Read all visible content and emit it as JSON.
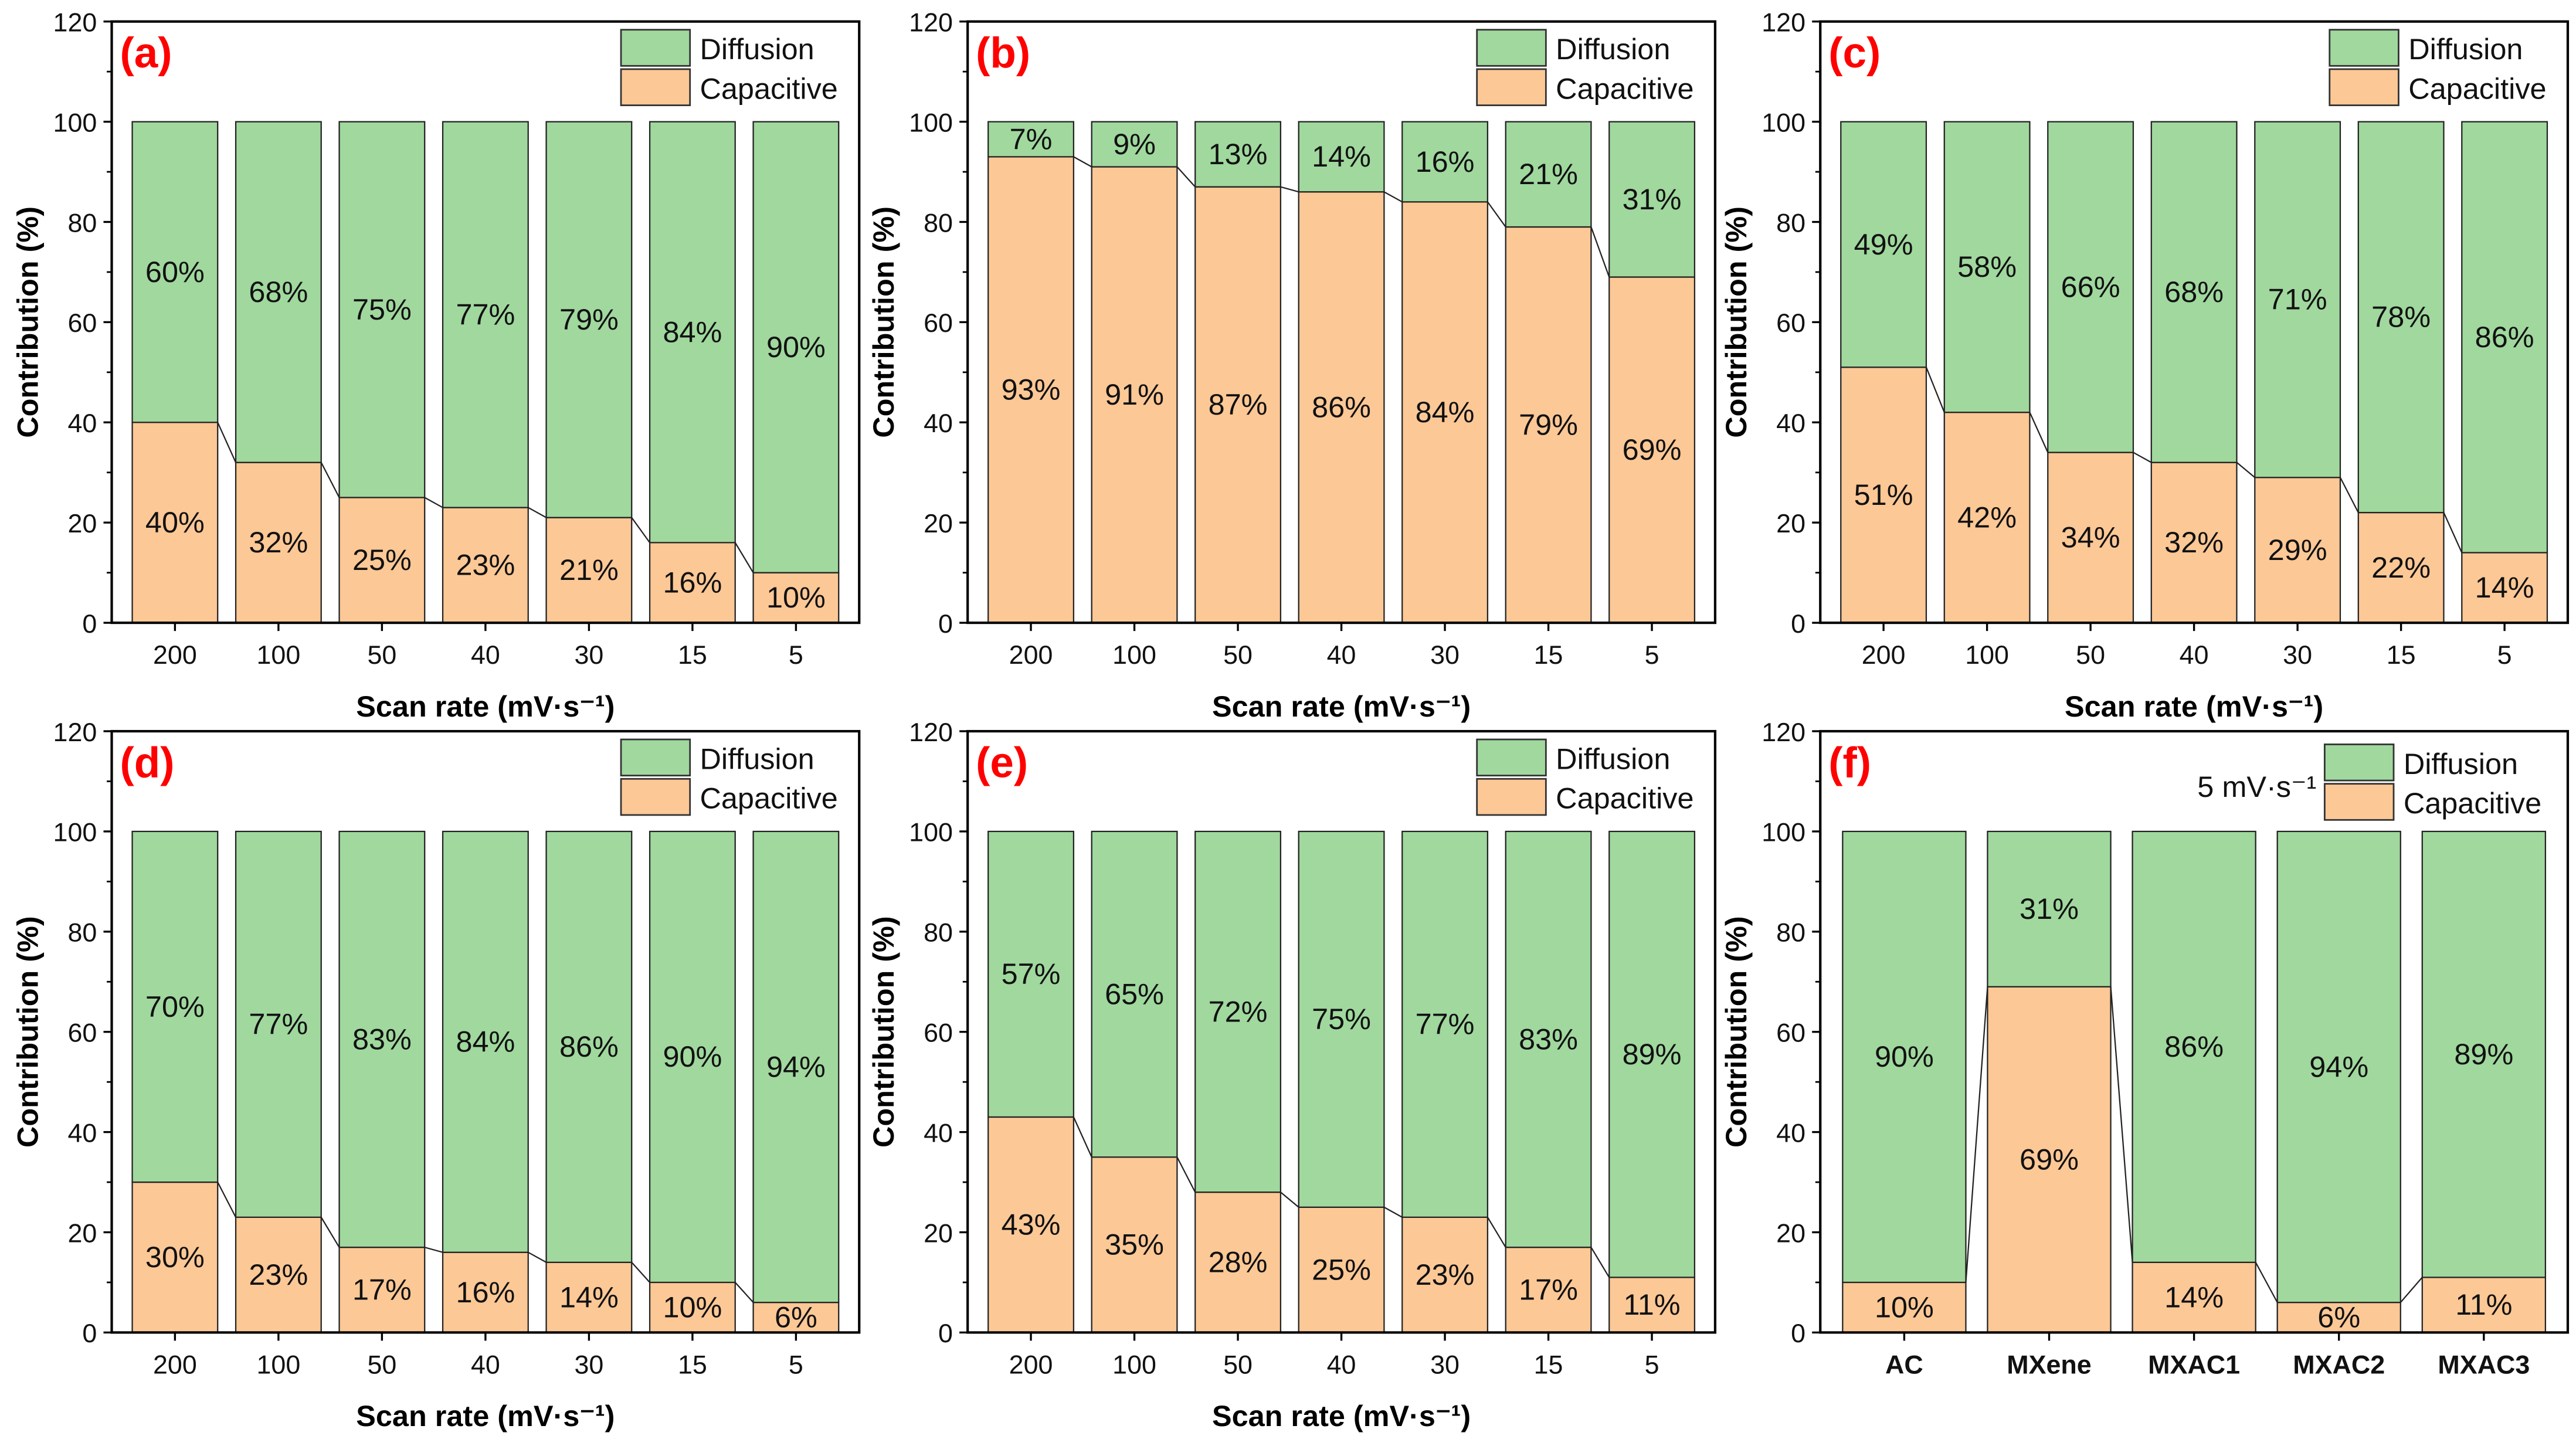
{
  "colors": {
    "diffusion": "#A0D89E",
    "capacitive": "#FCC896",
    "panel_label": "#FF0000"
  },
  "chart_data": [
    {
      "type": "bar",
      "stacked": true,
      "panel_label": "(a)",
      "xlabel": "Scan rate (mV·s⁻¹)",
      "ylabel": "Contribution (%)",
      "ylim": [
        0,
        120
      ],
      "yticks": [
        0,
        20,
        40,
        60,
        80,
        100,
        120
      ],
      "categories": [
        "200",
        "100",
        "50",
        "40",
        "30",
        "15",
        "5"
      ],
      "legend": [
        "Diffusion",
        "Capacitive"
      ],
      "legend_position": "top-right",
      "annotation": "",
      "series": [
        {
          "name": "Capacitive",
          "values": [
            40,
            32,
            25,
            23,
            21,
            16,
            10
          ]
        },
        {
          "name": "Diffusion",
          "values": [
            60,
            68,
            75,
            77,
            79,
            84,
            90
          ]
        }
      ]
    },
    {
      "type": "bar",
      "stacked": true,
      "panel_label": "(b)",
      "xlabel": "Scan rate (mV·s⁻¹)",
      "ylabel": "Contribution (%)",
      "ylim": [
        0,
        120
      ],
      "yticks": [
        0,
        20,
        40,
        60,
        80,
        100,
        120
      ],
      "categories": [
        "200",
        "100",
        "50",
        "40",
        "30",
        "15",
        "5"
      ],
      "legend": [
        "Diffusion",
        "Capacitive"
      ],
      "legend_position": "top-right",
      "annotation": "",
      "series": [
        {
          "name": "Capacitive",
          "values": [
            93,
            91,
            87,
            86,
            84,
            79,
            69
          ]
        },
        {
          "name": "Diffusion",
          "values": [
            7,
            9,
            13,
            14,
            16,
            21,
            31
          ]
        }
      ]
    },
    {
      "type": "bar",
      "stacked": true,
      "panel_label": "(c)",
      "xlabel": "Scan rate (mV·s⁻¹)",
      "ylabel": "Contribution (%)",
      "ylim": [
        0,
        120
      ],
      "yticks": [
        0,
        20,
        40,
        60,
        80,
        100,
        120
      ],
      "categories": [
        "200",
        "100",
        "50",
        "40",
        "30",
        "15",
        "5"
      ],
      "legend": [
        "Diffusion",
        "Capacitive"
      ],
      "legend_position": "top-right",
      "annotation": "",
      "series": [
        {
          "name": "Capacitive",
          "values": [
            51,
            42,
            34,
            32,
            29,
            22,
            14
          ]
        },
        {
          "name": "Diffusion",
          "values": [
            49,
            58,
            66,
            68,
            71,
            78,
            86
          ]
        }
      ]
    },
    {
      "type": "bar",
      "stacked": true,
      "panel_label": "(d)",
      "xlabel": "Scan rate (mV·s⁻¹)",
      "ylabel": "Contribution (%)",
      "ylim": [
        0,
        120
      ],
      "yticks": [
        0,
        20,
        40,
        60,
        80,
        100,
        120
      ],
      "categories": [
        "200",
        "100",
        "50",
        "40",
        "30",
        "15",
        "5"
      ],
      "legend": [
        "Diffusion",
        "Capacitive"
      ],
      "legend_position": "top-right",
      "annotation": "",
      "series": [
        {
          "name": "Capacitive",
          "values": [
            30,
            23,
            17,
            16,
            14,
            10,
            6
          ]
        },
        {
          "name": "Diffusion",
          "values": [
            70,
            77,
            83,
            84,
            86,
            90,
            94
          ]
        }
      ]
    },
    {
      "type": "bar",
      "stacked": true,
      "panel_label": "(e)",
      "xlabel": "Scan rate (mV·s⁻¹)",
      "ylabel": "Contribution (%)",
      "ylim": [
        0,
        120
      ],
      "yticks": [
        0,
        20,
        40,
        60,
        80,
        100,
        120
      ],
      "categories": [
        "200",
        "100",
        "50",
        "40",
        "30",
        "15",
        "5"
      ],
      "legend": [
        "Diffusion",
        "Capacitive"
      ],
      "legend_position": "top-right",
      "annotation": "",
      "series": [
        {
          "name": "Capacitive",
          "values": [
            43,
            35,
            28,
            25,
            23,
            17,
            11
          ]
        },
        {
          "name": "Diffusion",
          "values": [
            57,
            65,
            72,
            75,
            77,
            83,
            89
          ]
        }
      ]
    },
    {
      "type": "bar",
      "stacked": true,
      "panel_label": "(f)",
      "xlabel": "",
      "ylabel": "Contribution (%)",
      "ylim": [
        0,
        120
      ],
      "yticks": [
        0,
        20,
        40,
        60,
        80,
        100,
        120
      ],
      "categories": [
        "AC",
        "MXene",
        "MXAC1",
        "MXAC2",
        "MXAC3"
      ],
      "legend": [
        "Diffusion",
        "Capacitive"
      ],
      "legend_position": "top-right",
      "annotation": "5 mV·s⁻¹",
      "series": [
        {
          "name": "Capacitive",
          "values": [
            10,
            69,
            14,
            6,
            11
          ]
        },
        {
          "name": "Diffusion",
          "values": [
            90,
            31,
            86,
            94,
            89
          ]
        }
      ]
    }
  ]
}
